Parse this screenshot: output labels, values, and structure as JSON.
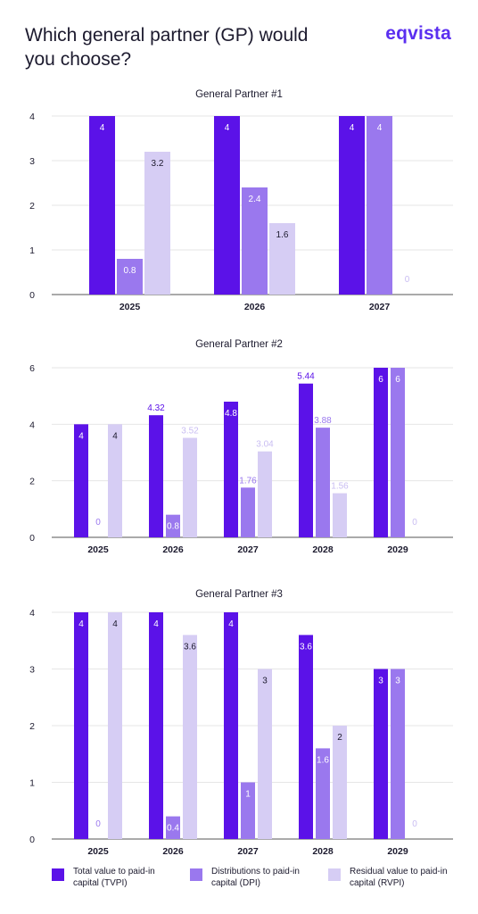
{
  "page": {
    "title": "Which general partner (GP) would you choose?",
    "brand": "eqvista"
  },
  "colors": {
    "tvpi": "#5b12e8",
    "dpi": "#9a78ee",
    "rvpi": "#d6cdf4",
    "axis": "#555555",
    "grid": "#e6e6e6"
  },
  "legend": [
    {
      "key": "tvpi",
      "label": "Total value to paid-in capital (TVPI)"
    },
    {
      "key": "dpi",
      "label": "Distributions to paid-in capital (DPI)"
    },
    {
      "key": "rvpi",
      "label": "Residual value to paid-in capital (RVPI)"
    }
  ],
  "chart_data": [
    {
      "type": "bar",
      "title": "General Partner #1",
      "categories": [
        "2025",
        "2026",
        "2027"
      ],
      "ylim": [
        0,
        4
      ],
      "yticks": [
        0,
        1,
        2,
        3,
        4
      ],
      "grid": true,
      "series": [
        {
          "name": "Total value to paid-in capital (TVPI)",
          "key": "tvpi",
          "values": [
            4,
            4,
            4
          ],
          "labels": [
            "4",
            "4",
            "4"
          ]
        },
        {
          "name": "Distributions to paid-in capital (DPI)",
          "key": "dpi",
          "values": [
            0.8,
            2.4,
            4
          ],
          "labels": [
            "0.8",
            "2.4",
            "4"
          ]
        },
        {
          "name": "Residual value to paid-in capital (RVPI)",
          "key": "rvpi",
          "values": [
            3.2,
            1.6,
            0
          ],
          "labels": [
            "3.2",
            "1.6",
            "0"
          ]
        }
      ]
    },
    {
      "type": "bar",
      "title": "General Partner #2",
      "categories": [
        "2025",
        "2026",
        "2027",
        "2028",
        "2029"
      ],
      "ylim": [
        0,
        6
      ],
      "yticks": [
        0,
        2,
        4,
        6
      ],
      "grid": true,
      "series": [
        {
          "name": "Total value to paid-in capital (TVPI)",
          "key": "tvpi",
          "values": [
            4,
            4.32,
            4.8,
            5.44,
            6
          ],
          "labels": [
            "4",
            "4.32",
            "4.8",
            "5.44",
            "6"
          ]
        },
        {
          "name": "Distributions to paid-in capital (DPI)",
          "key": "dpi",
          "values": [
            0,
            0.8,
            1.76,
            3.88,
            6
          ],
          "labels": [
            "0",
            "0.8",
            "1.76",
            "3.88",
            "6"
          ]
        },
        {
          "name": "Residual value to paid-in capital (RVPI)",
          "key": "rvpi",
          "values": [
            4,
            3.52,
            3.04,
            1.56,
            0
          ],
          "labels": [
            "4",
            "3.52",
            "3.04",
            "1.56",
            "0"
          ]
        }
      ]
    },
    {
      "type": "bar",
      "title": "General Partner #3",
      "categories": [
        "2025",
        "2026",
        "2027",
        "2028",
        "2029"
      ],
      "ylim": [
        0,
        4
      ],
      "yticks": [
        0,
        1,
        2,
        3,
        4
      ],
      "grid": true,
      "series": [
        {
          "name": "Total value to paid-in capital (TVPI)",
          "key": "tvpi",
          "values": [
            4,
            4,
            4,
            3.6,
            3
          ],
          "labels": [
            "4",
            "4",
            "4",
            "3.6",
            "3"
          ]
        },
        {
          "name": "Distributions to paid-in capital (DPI)",
          "key": "dpi",
          "values": [
            0,
            0.4,
            1,
            1.6,
            3
          ],
          "labels": [
            "0",
            "0.4",
            "1",
            "1.6",
            "3"
          ]
        },
        {
          "name": "Residual value to paid-in capital (RVPI)",
          "key": "rvpi",
          "values": [
            4,
            3.6,
            3,
            2,
            0
          ],
          "labels": [
            "4",
            "3.6",
            "3",
            "2",
            "0"
          ]
        }
      ]
    }
  ]
}
